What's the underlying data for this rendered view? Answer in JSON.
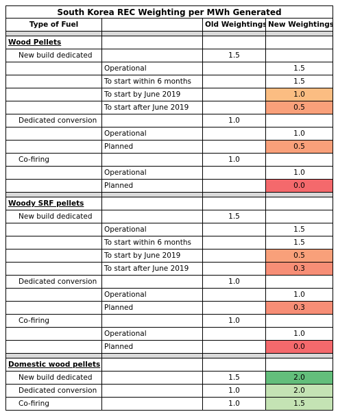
{
  "table": {
    "title": "South Korea REC Weighting per MWh Generated",
    "header": [
      "Type of Fuel",
      "Old Weightings",
      "New Weightings"
    ],
    "sections": [
      {
        "name": "Wood Pellets",
        "rows": [
          {
            "type": "New build dedicated",
            "old": "1.5"
          },
          {
            "detail": "Operational",
            "new": "1.5"
          },
          {
            "detail": "To start within 6 months",
            "new": "1.5"
          },
          {
            "detail": "To start by June 2019",
            "new": "1.0",
            "color": "#fbbd82"
          },
          {
            "detail": "To start after June 2019",
            "new": "0.5",
            "color": "#f9a07a"
          },
          {
            "type": "Dedicated conversion",
            "old": "1.0"
          },
          {
            "detail": "Operational",
            "new": "1.0"
          },
          {
            "detail": "Planned",
            "new": "0.5",
            "color": "#f9a07a"
          },
          {
            "type": "Co-firing",
            "old": "1.0"
          },
          {
            "detail": "Operational",
            "new": "1.0"
          },
          {
            "detail": "Planned",
            "new": "0.0",
            "color": "#f4696c"
          }
        ]
      },
      {
        "name": "Woody SRF pellets",
        "rows": [
          {
            "type": "New build dedicated",
            "old": "1.5"
          },
          {
            "detail": "Operational",
            "new": "1.5"
          },
          {
            "detail": "To start within 6 months",
            "new": "1.5"
          },
          {
            "detail": "To start by June 2019",
            "new": "0.5",
            "color": "#f9a07a"
          },
          {
            "detail": "To start after June 2019",
            "new": "0.3",
            "color": "#f78e76"
          },
          {
            "type": "Dedicated conversion",
            "old": "1.0"
          },
          {
            "detail": "Operational",
            "new": "1.0"
          },
          {
            "detail": "Planned",
            "new": "0.3",
            "color": "#f78e76"
          },
          {
            "type": "Co-firing",
            "old": "1.0"
          },
          {
            "detail": "Operational",
            "new": "1.0"
          },
          {
            "detail": "Planned",
            "new": "0.0",
            "color": "#f4696c"
          }
        ]
      },
      {
        "name": "Domestic wood pellets",
        "rows": [
          {
            "type": "New build dedicated",
            "old": "1.5",
            "new": "2.0",
            "color": "#63be7b"
          },
          {
            "type": "Dedicated conversion",
            "old": "1.0",
            "new": "2.0",
            "color": "#c4e3b4"
          },
          {
            "type": "Co-firing",
            "old": "1.0",
            "new": "1.5",
            "color": "#c4e3b4"
          }
        ]
      }
    ]
  }
}
